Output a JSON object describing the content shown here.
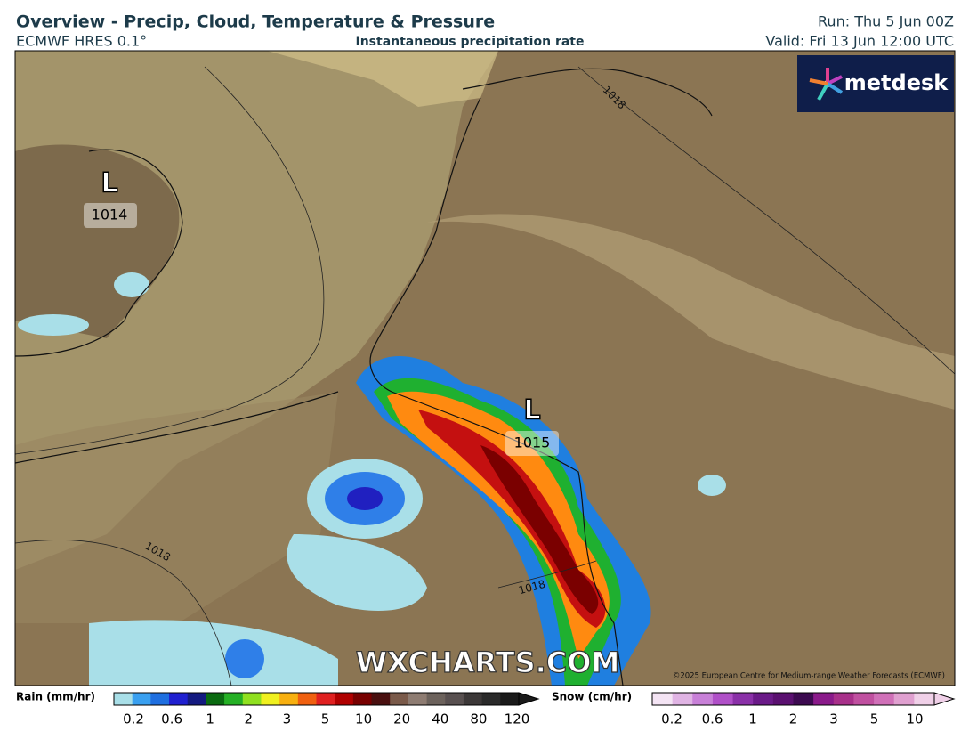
{
  "header": {
    "title": "Overview - Precip, Cloud, Temperature & Pressure",
    "model": "ECMWF HRES 0.1°",
    "subtitle": "Instantaneous precipitation rate",
    "run": "Run: Thu 5 Jun 00Z",
    "valid": "Valid: Fri 13 Jun 12:00 UTC"
  },
  "logo": "metdesk",
  "map": {
    "lows": [
      {
        "symbol": "L",
        "pressure": "1014"
      },
      {
        "symbol": "L",
        "pressure": "1015"
      }
    ],
    "isobar_labels": [
      "1018",
      "1018",
      "1018"
    ],
    "watermark": "WXCHARTS.COM",
    "copyright": "©2025 European Centre for Medium-range Weather Forecasts (ECMWF)"
  },
  "legend": {
    "rain": {
      "label": "Rain (mm/hr)",
      "ticks": [
        0.2,
        0.6,
        1,
        2,
        3,
        5,
        10,
        20,
        40,
        80,
        120
      ]
    },
    "snow": {
      "label": "Snow (cm/hr)",
      "ticks": [
        0.2,
        0.6,
        1,
        2,
        3,
        5,
        10
      ]
    }
  }
}
